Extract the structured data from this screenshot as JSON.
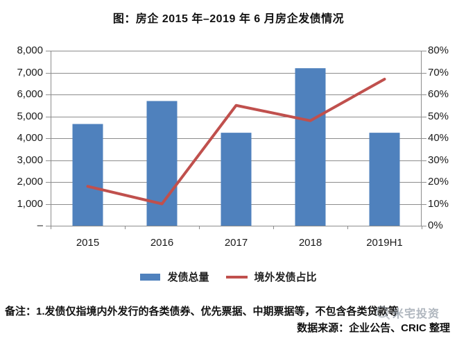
{
  "title": "图：房企 2015 年–2019 年 6 月房企发债情况",
  "chart_data": {
    "type": "combo-bar-line",
    "categories": [
      "2015",
      "2016",
      "2017",
      "2018",
      "2019H1"
    ],
    "series": [
      {
        "name": "发债总量",
        "type": "bar",
        "axis": "left",
        "values": [
          4650,
          5700,
          4250,
          7200,
          4250
        ]
      },
      {
        "name": "境外发债占比",
        "type": "line",
        "axis": "right",
        "unit": "%",
        "values": [
          18,
          10,
          55,
          48,
          67
        ]
      }
    ],
    "y_left": {
      "min": 0,
      "max": 8000,
      "step": 1000,
      "tick_labels": [
        "8,000",
        "7,000",
        "6,000",
        "5,000",
        "4,000",
        "3,000",
        "2,000",
        "1,000",
        "–"
      ]
    },
    "y_right": {
      "min": 0,
      "max": 80,
      "step": 10,
      "tick_labels": [
        "80%",
        "70%",
        "60%",
        "50%",
        "40%",
        "30%",
        "20%",
        "10%",
        "0%"
      ]
    },
    "grid": true,
    "legend_position": "bottom",
    "colors": {
      "bar": "#4F81BD",
      "line": "#C0504D",
      "grid": "#8C8C8C",
      "axis": "#8C8C8C",
      "text": "#1A1A1A"
    }
  },
  "notes": {
    "line1": "备注：1.发债仅指境内外发行的各类债券、优先票据、中期票据等，不包含各类贷款等",
    "source": "数据来源：企业公告、CRIC 整理"
  },
  "watermark": {
    "text": "米宅投资"
  }
}
